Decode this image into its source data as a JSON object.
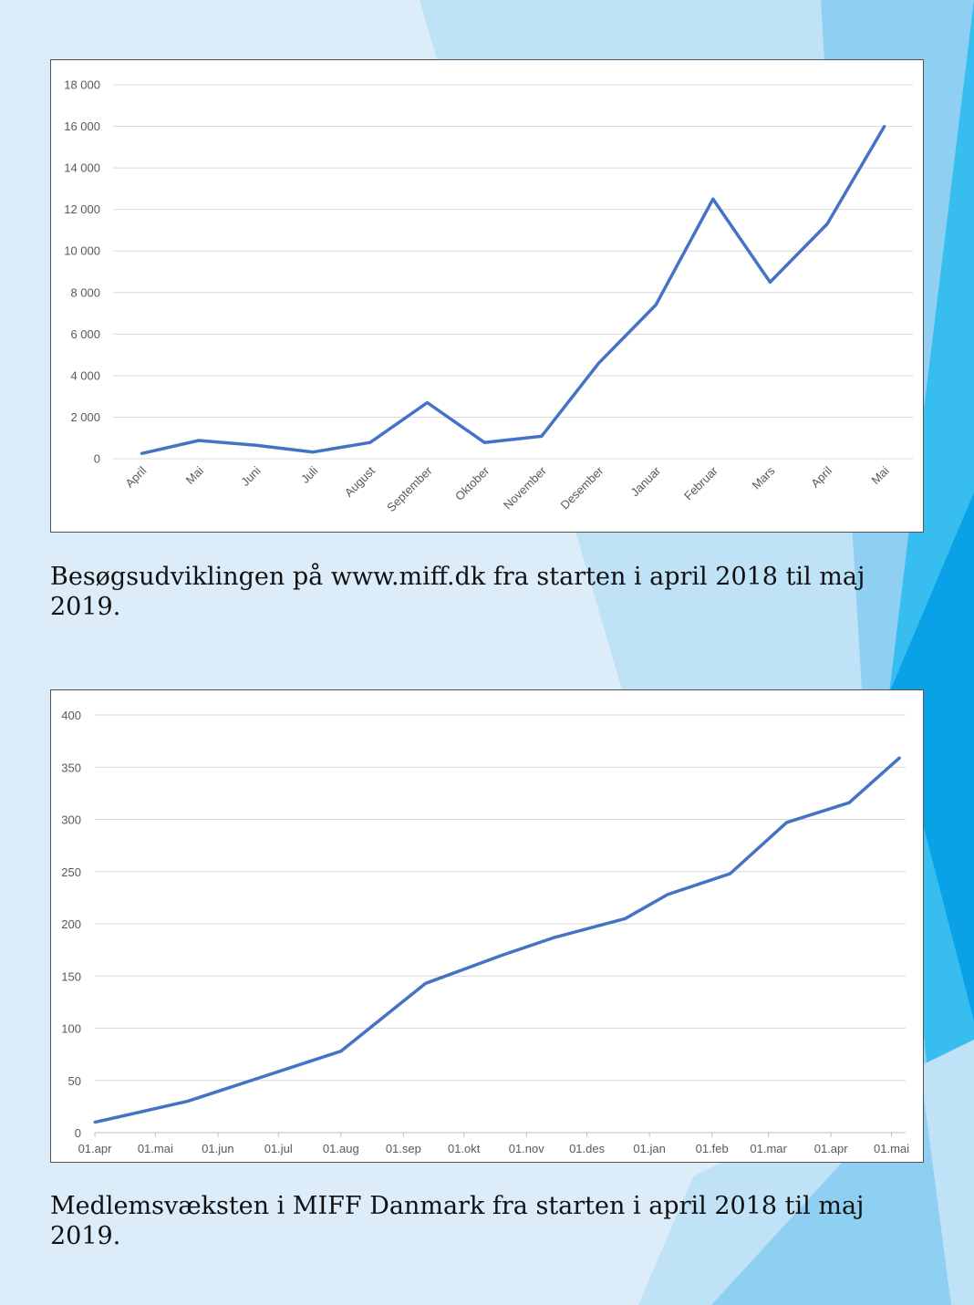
{
  "colors": {
    "background": "#dcedf9",
    "shape_light": "#bfe2f7",
    "shape_mid": "#8fd0f2",
    "shape_accent": "#38bdf0",
    "shape_dark": "#0aa2e6",
    "line": "#4472c4",
    "gridline": "#d9d9d9"
  },
  "captions": {
    "first": "Besøgsudviklingen på www.miff.dk fra starten i april 2018 til maj 2019.",
    "second": "Medlemsvæksten i MIFF Danmark fra starten i april 2018 til maj 2019."
  },
  "chart_data": [
    {
      "type": "line",
      "title": "",
      "categories": [
        "April",
        "Mai",
        "Juni",
        "Juli",
        "August",
        "September",
        "Oktober",
        "November",
        "Desember",
        "Januar",
        "Februar",
        "Mars",
        "April",
        "Mai"
      ],
      "values": [
        250,
        880,
        650,
        320,
        780,
        2700,
        780,
        1080,
        4600,
        7400,
        12500,
        8500,
        11300,
        16000
      ],
      "ylim": [
        0,
        18000
      ],
      "yticks": [
        0,
        2000,
        4000,
        6000,
        8000,
        10000,
        12000,
        14000,
        16000,
        18000
      ],
      "ytick_labels": [
        "0",
        "2 000",
        "4 000",
        "6 000",
        "8 000",
        "10 000",
        "12 000",
        "14 000",
        "16 000",
        "18 000"
      ],
      "grid": true,
      "legend": "none"
    },
    {
      "type": "line",
      "title": "",
      "x": [
        "2018-04-01",
        "2018-05-17",
        "2018-08-01",
        "2018-09-12",
        "2018-10-20",
        "2018-11-15",
        "2018-12-20",
        "2019-01-10",
        "2019-02-10",
        "2019-03-10",
        "2019-04-10",
        "2019-05-05"
      ],
      "values": [
        10,
        30,
        78,
        143,
        170,
        187,
        205,
        228,
        248,
        297,
        316,
        359
      ],
      "xticks": [
        "2018-04-01",
        "2018-05-01",
        "2018-06-01",
        "2018-07-01",
        "2018-08-01",
        "2018-09-01",
        "2018-10-01",
        "2018-11-01",
        "2018-12-01",
        "2019-01-01",
        "2019-02-01",
        "2019-03-01",
        "2019-04-01",
        "2019-05-01"
      ],
      "xtick_labels": [
        "01.apr",
        "01.mai",
        "01.jun",
        "01.jul",
        "01.aug",
        "01.sep",
        "01.okt",
        "01.nov",
        "01.des",
        "01.jan",
        "01.feb",
        "01.mar",
        "01.apr",
        "01.mai"
      ],
      "xlim": [
        "2018-04-01",
        "2019-05-08"
      ],
      "ylim": [
        0,
        400
      ],
      "yticks": [
        0,
        50,
        100,
        150,
        200,
        250,
        300,
        350,
        400
      ],
      "ytick_labels": [
        "0",
        "50",
        "100",
        "150",
        "200",
        "250",
        "300",
        "350",
        "400"
      ],
      "grid": true,
      "legend": "none"
    }
  ]
}
